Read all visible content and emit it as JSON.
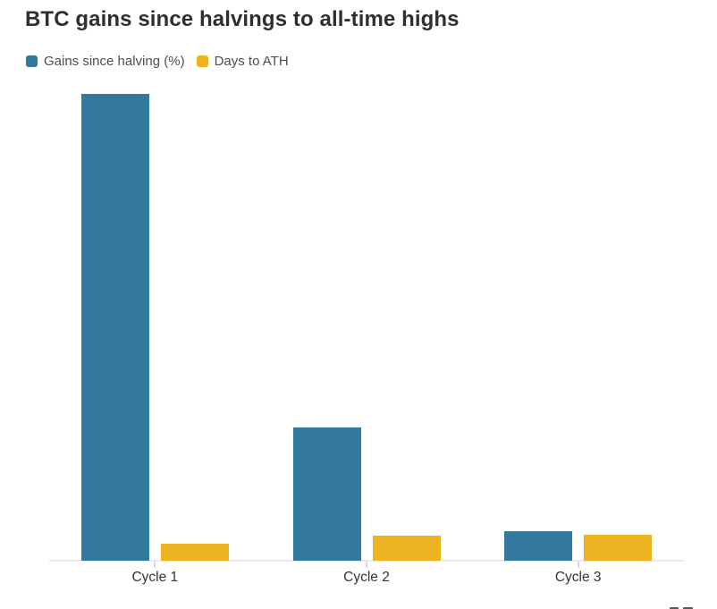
{
  "header": {
    "title": "BTC gains since halvings to all-time highs"
  },
  "legend": {
    "items": [
      {
        "label": "Gains since halving (%)",
        "color": "#33789E"
      },
      {
        "label": "Days to ATH",
        "color": "#ECB221"
      }
    ]
  },
  "chart_data": {
    "type": "bar",
    "title": "BTC gains since halvings to all-time highs",
    "categories": [
      "Cycle 1",
      "Cycle 2",
      "Cycle 3"
    ],
    "series": [
      {
        "name": "Gains since halving (%)",
        "color": "#33789E",
        "values": [
          10000,
          2850,
          630
        ]
      },
      {
        "name": "Days to ATH",
        "color": "#ECB221",
        "values": [
          370,
          535,
          555
        ]
      }
    ],
    "xlabel": "",
    "ylabel": "",
    "ylim": [
      0,
      10000
    ],
    "grid": false,
    "y_axis_ticks": "none",
    "legend_position": "top-left"
  },
  "decor": {
    "axis_color": "#EBEBEB",
    "tick_color": "#DCDCDC",
    "cropped_marks_color": "#585858"
  }
}
